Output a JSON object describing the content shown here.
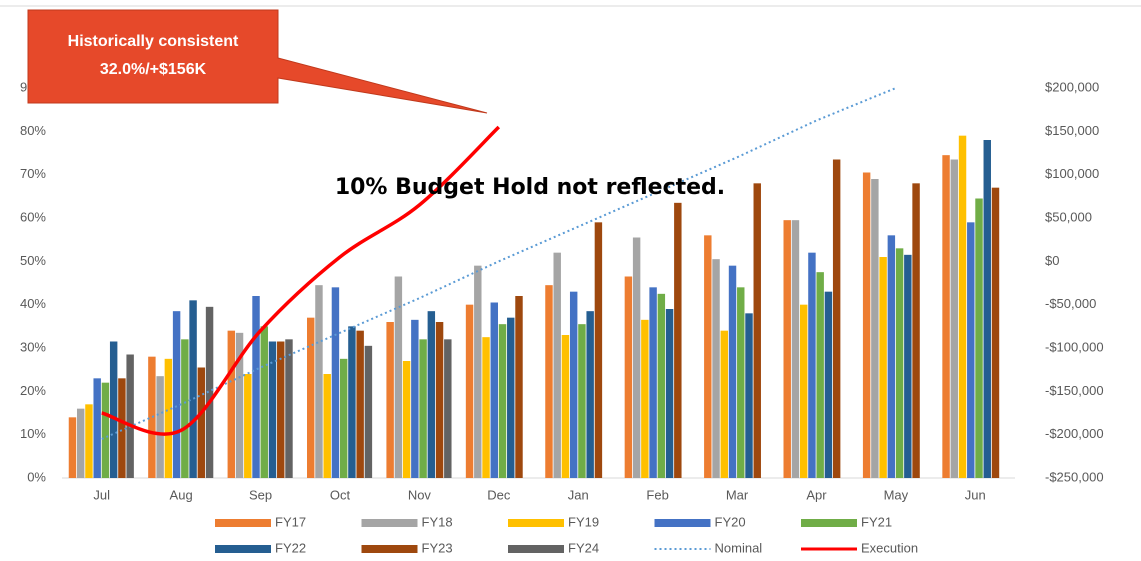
{
  "chart_data": {
    "type": "bar",
    "callout": [
      "Historically consistent",
      "32.0%/+$156K"
    ],
    "annotation": "10% Budget Hold not reflected.",
    "categories": [
      "Jul",
      "Aug",
      "Sep",
      "Oct",
      "Nov",
      "Dec",
      "Jan",
      "Feb",
      "Mar",
      "Apr",
      "May",
      "Jun"
    ],
    "series": [
      {
        "name": "FY17",
        "color": "#ed7d31",
        "values": [
          14,
          28,
          34,
          37,
          36,
          40,
          44.5,
          46.5,
          56,
          59.5,
          70.5,
          74.5
        ]
      },
      {
        "name": "FY18",
        "color": "#a5a5a5",
        "values": [
          16,
          23.5,
          33.5,
          44.5,
          46.5,
          49,
          52,
          55.5,
          50.5,
          59.5,
          69,
          73.5
        ]
      },
      {
        "name": "FY19",
        "color": "#ffc000",
        "values": [
          17,
          27.5,
          24,
          24,
          27,
          32.5,
          33,
          36.5,
          34,
          40,
          51,
          79
        ]
      },
      {
        "name": "FY20",
        "color": "#4472c4",
        "values": [
          23,
          38.5,
          42,
          44,
          36.5,
          40.5,
          43,
          44,
          49,
          52,
          56,
          59
        ]
      },
      {
        "name": "FY21",
        "color": "#70ad47",
        "values": [
          22,
          32,
          35,
          27.5,
          32,
          35.5,
          35.5,
          42.5,
          44,
          47.5,
          53,
          64.5
        ]
      },
      {
        "name": "FY22",
        "color": "#255e91",
        "values": [
          31.5,
          41,
          31.5,
          35,
          38.5,
          37,
          38.5,
          39,
          38,
          43,
          51.5,
          78
        ]
      },
      {
        "name": "FY23",
        "color": "#9e480e",
        "values": [
          23,
          25.5,
          31.5,
          34,
          36,
          42,
          59,
          63.5,
          68,
          73.5,
          68,
          67
        ]
      },
      {
        "name": "FY24",
        "color": "#636363",
        "values": [
          28.5,
          39.5,
          32,
          30.5,
          32,
          null,
          null,
          null,
          null,
          null,
          null,
          null
        ]
      },
      {
        "name": "Nominal",
        "color": "#5b9bd5",
        "line": "dotted",
        "values": [
          9,
          17,
          25.5,
          33.5,
          41.5,
          50,
          58,
          66,
          74,
          82.5,
          90,
          null
        ]
      },
      {
        "name": "Execution",
        "color": "#ff0000",
        "line": "solid",
        "values": [
          15,
          11,
          34,
          51,
          63,
          81,
          null,
          null,
          null,
          null,
          null,
          null
        ]
      }
    ],
    "ylim": [
      0,
      90
    ],
    "yticks": [
      {
        "value": 0,
        "label": "0%"
      },
      {
        "value": 10,
        "label": "10%"
      },
      {
        "value": 20,
        "label": "20%"
      },
      {
        "value": 30,
        "label": "30%"
      },
      {
        "value": 40,
        "label": "40%"
      },
      {
        "value": 50,
        "label": "50%"
      },
      {
        "value": 60,
        "label": "60%"
      },
      {
        "value": 70,
        "label": "70%"
      },
      {
        "value": 80,
        "label": "80%"
      },
      {
        "value": 90,
        "label": "90%"
      }
    ],
    "y2lim": [
      -250000,
      200000
    ],
    "y2ticks": [
      {
        "value": -250000,
        "label": "-$250,000"
      },
      {
        "value": -200000,
        "label": "-$200,000"
      },
      {
        "value": -150000,
        "label": "-$150,000"
      },
      {
        "value": -100000,
        "label": "-$100,000"
      },
      {
        "value": -50000,
        "label": "-$50,000"
      },
      {
        "value": 0,
        "label": "$0"
      },
      {
        "value": 50000,
        "label": "$50,000"
      },
      {
        "value": 100000,
        "label": "$100,000"
      },
      {
        "value": 150000,
        "label": "$150,000"
      },
      {
        "value": 200000,
        "label": "$200,000"
      }
    ],
    "grid": false
  }
}
